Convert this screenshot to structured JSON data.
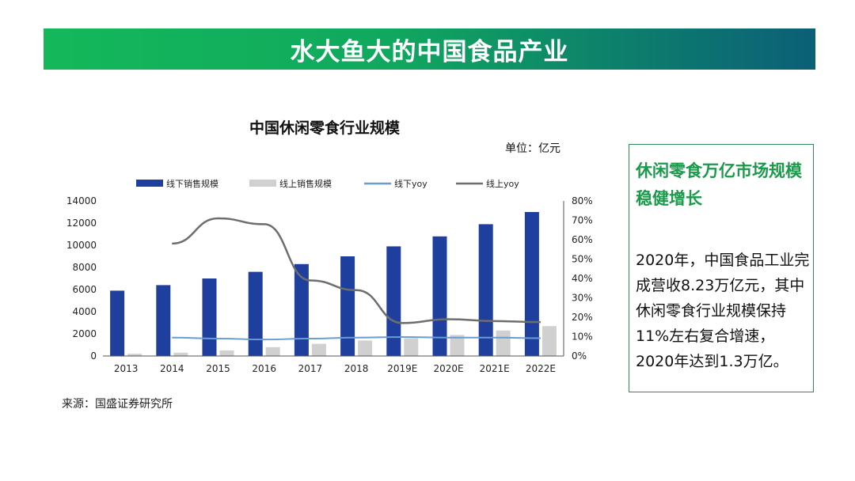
{
  "header": {
    "title": "水大鱼大的中国食品产业"
  },
  "chart_data": {
    "type": "bar",
    "title": "中国休闲零食行业规模",
    "unit_label": "单位：亿元",
    "categories": [
      "2013",
      "2014",
      "2015",
      "2016",
      "2017",
      "2018",
      "2019E",
      "2020E",
      "2021E",
      "2022E"
    ],
    "series": [
      {
        "name": "线下销售规模",
        "kind": "bar",
        "axis": "left",
        "color": "#1f3f9e",
        "values": [
          5900,
          6400,
          7000,
          7600,
          8300,
          9000,
          9900,
          10800,
          11900,
          13000
        ]
      },
      {
        "name": "线上销售规模",
        "kind": "bar",
        "axis": "left",
        "color": "#d0d0d0",
        "values": [
          200,
          300,
          500,
          800,
          1100,
          1400,
          1600,
          1900,
          2300,
          2700
        ]
      },
      {
        "name": "线下yoy",
        "kind": "line",
        "axis": "right",
        "color": "#6a9bd1",
        "values": [
          null,
          0.095,
          0.09,
          0.085,
          0.09,
          0.095,
          0.098,
          0.095,
          0.095,
          0.092
        ]
      },
      {
        "name": "线上yoy",
        "kind": "line",
        "axis": "right",
        "color": "#6e6e6e",
        "values": [
          null,
          0.58,
          0.71,
          0.68,
          0.39,
          0.34,
          0.17,
          0.19,
          0.18,
          0.175
        ]
      }
    ],
    "y_left": {
      "min": 0,
      "max": 14000,
      "ticks": [
        "0",
        "2000",
        "4000",
        "6000",
        "8000",
        "10000",
        "12000",
        "14000"
      ]
    },
    "y_right": {
      "min": 0,
      "max": 0.8,
      "ticks": [
        "0%",
        "10%",
        "20%",
        "30%",
        "40%",
        "50%",
        "60%",
        "70%",
        "80%"
      ]
    },
    "legend_position": "top",
    "grid": false
  },
  "source": "来源：国盛证券研究所",
  "panel": {
    "heading": "休闲零食万亿市场规模稳健增长",
    "body": "2020年，中国食品工业完成营收8.23万亿元，其中休闲零食行业规模保持11%左右复合增速，2020年达到1.3万亿。"
  }
}
